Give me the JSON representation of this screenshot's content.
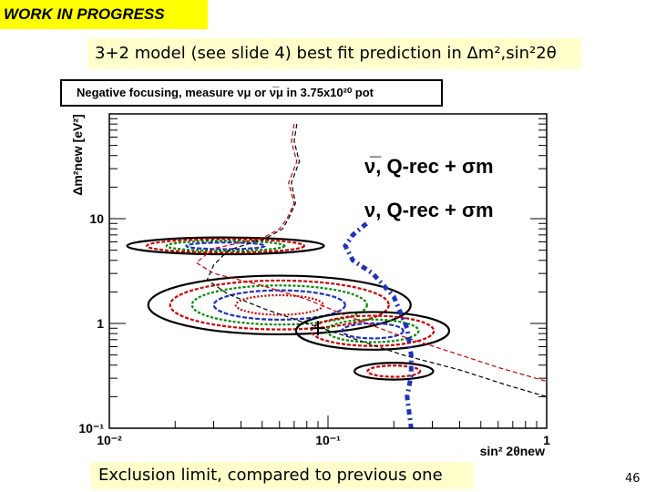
{
  "slide": {
    "badge": "WORK IN PROGRESS",
    "subtitle": "3+2 model (see slide 4) best fit prediction in Δm²,sin²2θ",
    "footer": "Exclusion limit, compared to previous one",
    "page_number": "46"
  },
  "chart_data": {
    "type": "line",
    "title": "Negative focusing, measure νμ or ν̅μ in 3.75x10²⁰ pot",
    "xlabel": "sin² 2θnew",
    "ylabel": "Δm²new [eV²]",
    "xscale": "log",
    "yscale": "log",
    "xlim": [
      0.01,
      1
    ],
    "ylim": [
      0.1,
      100
    ],
    "x_ticks": [
      "10⁻²",
      "10⁻¹",
      "1"
    ],
    "y_ticks": [
      "10⁻¹",
      "1",
      "10"
    ],
    "legend": [
      {
        "label": "ν̅, Q-rec + σm",
        "color": "#cc0000",
        "style": "dashed"
      },
      {
        "label": "ν, Q-rec + σm",
        "color": "#000000",
        "style": "dashed"
      }
    ],
    "series": [
      {
        "name": "ν̅, Q-rec + σm",
        "color": "#cc0000",
        "x": [
          0.07,
          0.068,
          0.072,
          0.066,
          0.07,
          0.065,
          0.06,
          0.05,
          0.03,
          0.025,
          0.03,
          0.05,
          0.08,
          0.12,
          0.2,
          0.35,
          0.6,
          1.0
        ],
        "y": [
          80,
          55,
          35,
          22,
          14,
          10,
          8,
          6.5,
          5.2,
          3.8,
          3.0,
          2.3,
          1.7,
          1.2,
          0.8,
          0.55,
          0.38,
          0.28
        ]
      },
      {
        "name": "ν, Q-rec + σm",
        "color": "#000000",
        "x": [
          0.072,
          0.07,
          0.074,
          0.068,
          0.071,
          0.066,
          0.062,
          0.052,
          0.035,
          0.03,
          0.028,
          0.035,
          0.05,
          0.08,
          0.13,
          0.22,
          0.4,
          0.65,
          1.0
        ],
        "y": [
          80,
          55,
          35,
          22,
          14,
          10,
          8,
          6.5,
          5.0,
          3.6,
          2.6,
          1.9,
          1.4,
          1.0,
          0.72,
          0.5,
          0.36,
          0.26,
          0.2
        ]
      },
      {
        "name": "",
        "color": "#2233bb",
        "x": [
          0.15,
          0.13,
          0.12,
          0.13,
          0.16,
          0.2,
          0.23,
          0.24,
          0.24,
          0.23,
          0.235,
          0.24
        ],
        "y": [
          9,
          7,
          5.5,
          4,
          3,
          1.8,
          0.9,
          0.5,
          0.32,
          0.2,
          0.14,
          0.1
        ]
      }
    ],
    "contours": [
      {
        "x_center": 0.034,
        "y_center": 5.5,
        "x_halfwidth_decades": 0.45,
        "y_halfwidth_decades": 0.08,
        "levels": 4
      },
      {
        "x_center": 0.06,
        "y_center": 1.5,
        "x_halfwidth_decades": 0.6,
        "y_halfwidth_decades": 0.28,
        "levels": 5
      },
      {
        "x_center": 0.16,
        "y_center": 0.85,
        "x_halfwidth_decades": 0.35,
        "y_halfwidth_decades": 0.18,
        "levels": 4
      },
      {
        "x_center": 0.2,
        "y_center": 0.35,
        "x_halfwidth_decades": 0.18,
        "y_halfwidth_decades": 0.08,
        "levels": 2
      }
    ],
    "best_fit": {
      "x": 0.09,
      "y": 0.9
    },
    "colors": {
      "red": "#cc0000",
      "green": "#008800",
      "blue": "#2233bb",
      "black": "#000000"
    }
  }
}
